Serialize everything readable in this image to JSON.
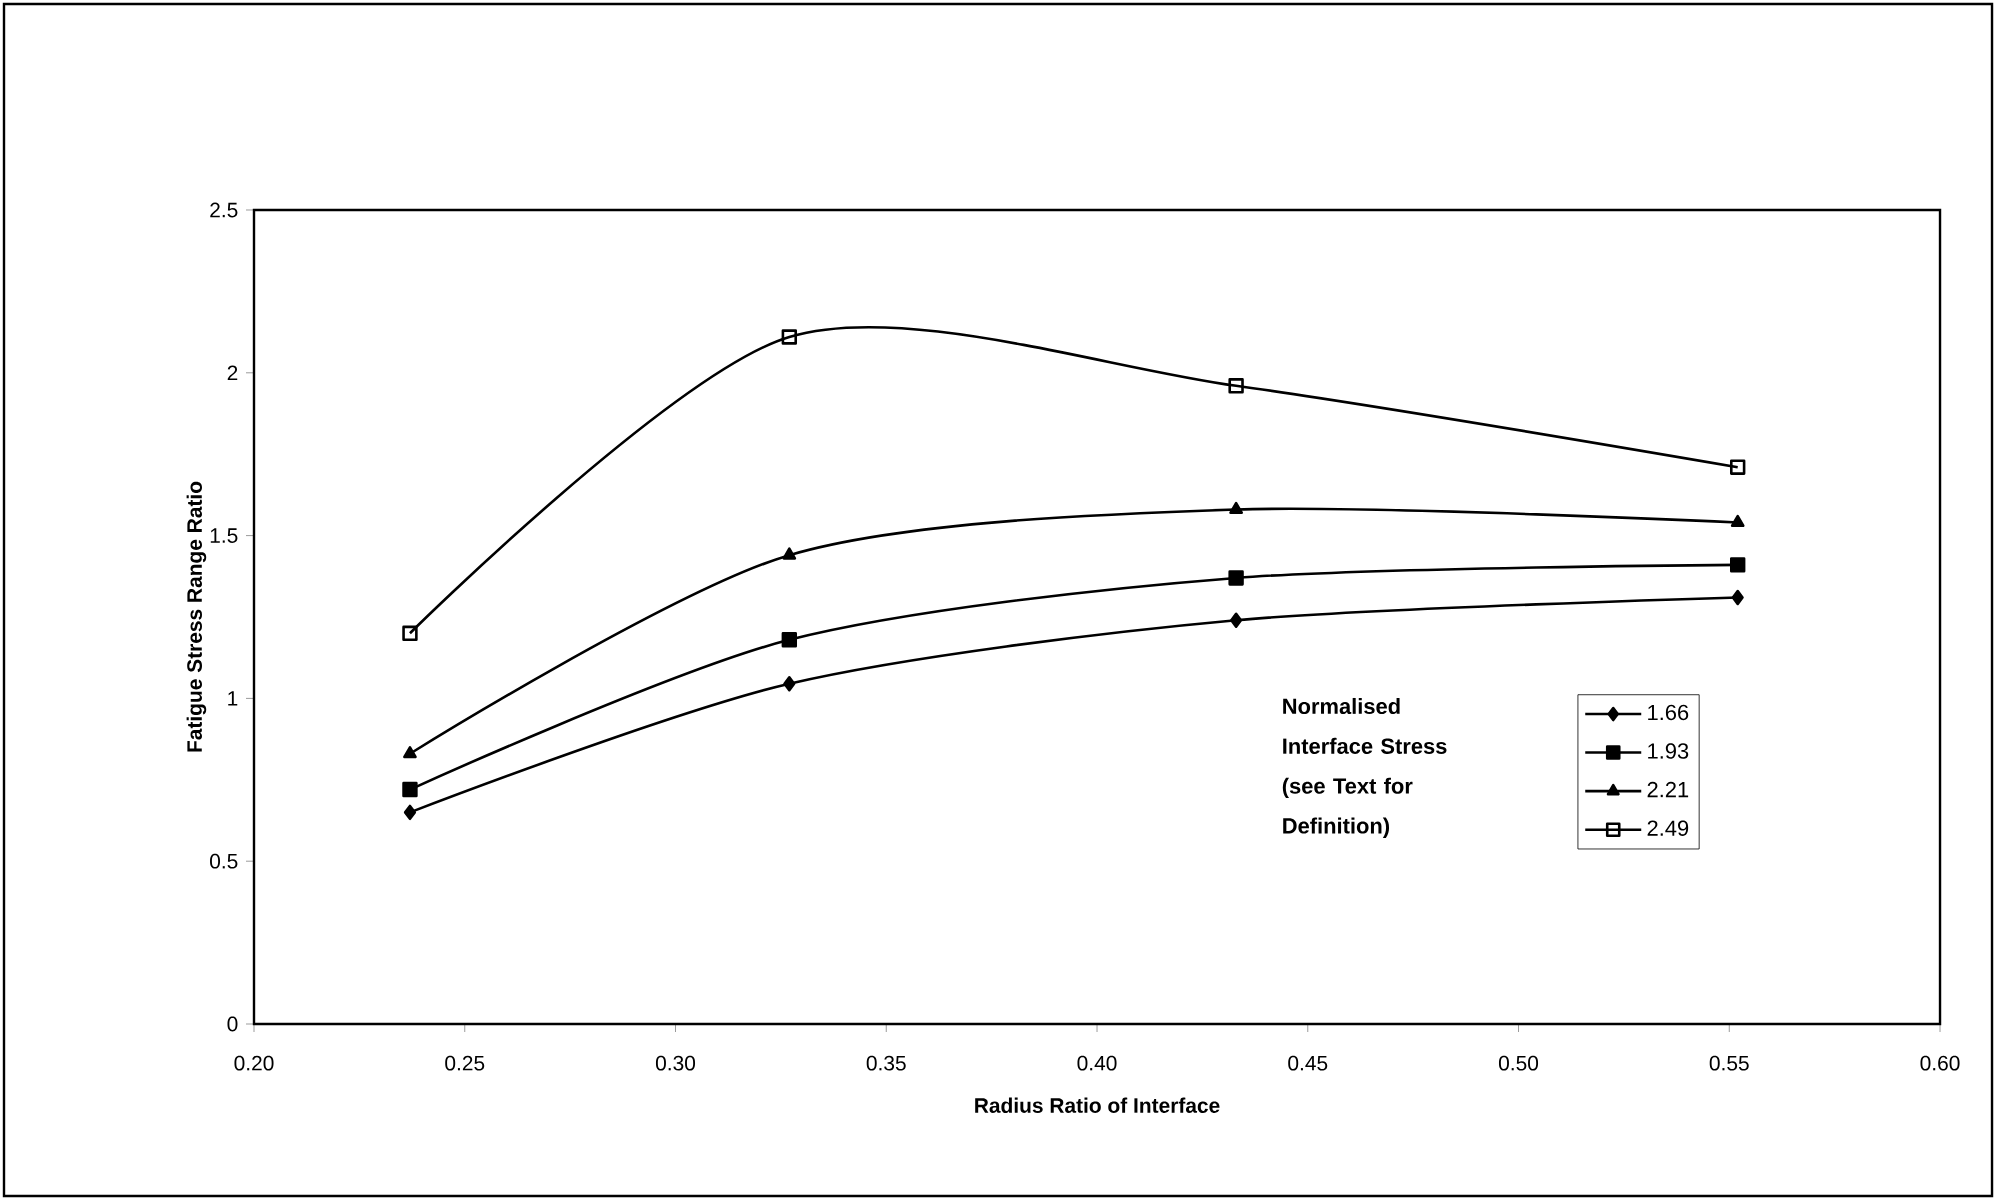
{
  "chart_data": {
    "type": "line",
    "xlabel": "Radius Ratio of Interface",
    "ylabel": "Fatigue Stress Range Ratio",
    "legend_title": "Normalised Interface Stress (see Text for Definition)",
    "x": [
      0.237,
      0.327,
      0.433,
      0.552
    ],
    "series": [
      {
        "name": "1.66",
        "color": "#000000",
        "marker": "diamond",
        "values": [
          0.65,
          1.045,
          1.24,
          1.31
        ]
      },
      {
        "name": "1.93",
        "color": "#000000",
        "marker": "square",
        "values": [
          0.72,
          1.18,
          1.37,
          1.41
        ]
      },
      {
        "name": "2.21",
        "color": "#000000",
        "marker": "triangle",
        "values": [
          0.83,
          1.44,
          1.58,
          1.54
        ]
      },
      {
        "name": "2.49",
        "color": "#000000",
        "marker": "square-open",
        "values": [
          1.2,
          2.11,
          1.96,
          1.71
        ]
      }
    ],
    "xlim": [
      0.2,
      0.6
    ],
    "xticks": [
      {
        "value": 0.2,
        "label": "0.20"
      },
      {
        "value": 0.25,
        "label": "0.25"
      },
      {
        "value": 0.3,
        "label": "0.30"
      },
      {
        "value": 0.35,
        "label": "0.35"
      },
      {
        "value": 0.4,
        "label": "0.40"
      },
      {
        "value": 0.45,
        "label": "0.45"
      },
      {
        "value": 0.5,
        "label": "0.50"
      },
      {
        "value": 0.55,
        "label": "0.55"
      },
      {
        "value": 0.6,
        "label": "0.60"
      }
    ],
    "ylim": [
      0,
      2.5
    ],
    "yticks": [
      0,
      0.5,
      1,
      1.5,
      2,
      2.5
    ],
    "grid": false,
    "legend": "bottom right",
    "line_style": "solid"
  }
}
